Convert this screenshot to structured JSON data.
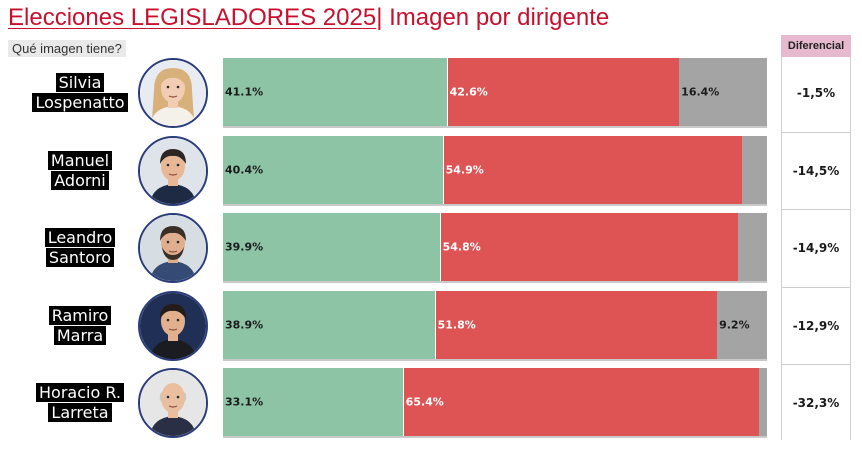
{
  "page": {
    "title_part1": "Elecciones LEGISLADORES 2025",
    "title_part2": "| Imagen por dirigente",
    "subtitle": "Qué imagen tiene?",
    "differential_header": "Diferencial"
  },
  "chart_data": {
    "type": "bar",
    "orientation": "horizontal",
    "stacked": true,
    "title": "Elecciones LEGISLADORES 2025| Imagen por dirigente",
    "subtitle": "Qué imagen tiene?",
    "categories": [
      [
        "Silvia",
        "Lospenatto"
      ],
      [
        "Manuel",
        "Adorni"
      ],
      [
        "Leandro",
        "Santoro"
      ],
      [
        "Ramiro",
        "Marra"
      ],
      [
        "Horacio R.",
        "Larreta"
      ]
    ],
    "series": [
      {
        "color": "#8dc4a6",
        "values": [
          41.1,
          40.4,
          39.9,
          38.9,
          33.1
        ],
        "labels": [
          "41.1%",
          "40.4%",
          "39.9%",
          "38.9%",
          "33.1%"
        ]
      },
      {
        "color": "#de5455",
        "values": [
          42.6,
          54.9,
          54.8,
          51.8,
          65.4
        ],
        "labels": [
          "42.6%",
          "54.9%",
          "54.8%",
          "51.8%",
          "65.4%"
        ]
      },
      {
        "color": "#a4a4a4",
        "values": [
          16.4,
          4.7,
          5.3,
          9.2,
          1.5
        ],
        "labels": [
          "16.4%",
          "",
          "",
          "9.2%",
          ""
        ]
      }
    ],
    "xlim": [
      0,
      100
    ],
    "legend": "none",
    "grid": false,
    "differential": [
      "-1,5%",
      "-14,5%",
      "-14,9%",
      "-12,9%",
      "-32,3%"
    ]
  }
}
